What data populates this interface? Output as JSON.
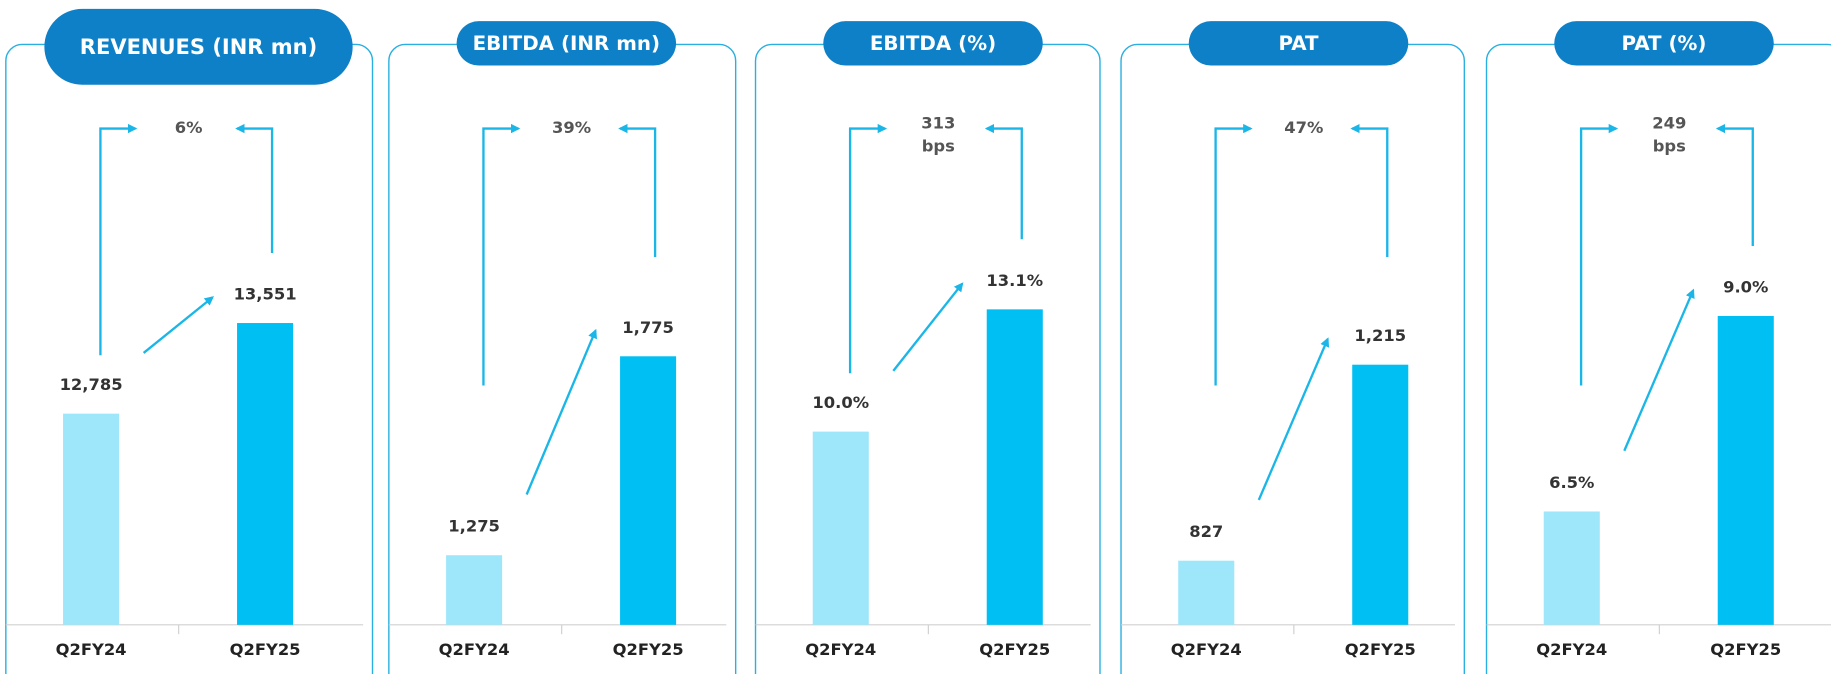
{
  "chart_data": [
    {
      "type": "bar",
      "title": "REVENUES (INR mn)",
      "categories": [
        "Q2FY24",
        "Q2FY25"
      ],
      "values": [
        12785,
        13551
      ],
      "value_labels": [
        "12,785",
        "13,551"
      ],
      "colors": [
        "#9ee7fa",
        "#00bff2"
      ],
      "ylim": [
        11000,
        14800
      ],
      "annotation": [
        "6%"
      ]
    },
    {
      "type": "bar",
      "title": "EBITDA (INR mn)",
      "categories": [
        "Q2FY24",
        "Q2FY25"
      ],
      "values": [
        1275,
        1775
      ],
      "value_labels": [
        "1,275",
        "1,775"
      ],
      "colors": [
        "#9ee7fa",
        "#00bff2"
      ],
      "ylim": [
        1100,
        2230
      ],
      "annotation": [
        "39%"
      ]
    },
    {
      "type": "bar",
      "title": "EBITDA (%)",
      "categories": [
        "Q2FY24",
        "Q2FY25"
      ],
      "values": [
        10.0,
        13.1
      ],
      "value_labels": [
        "10.0%",
        "13.1%"
      ],
      "colors": [
        "#9ee7fa",
        "#00bff2"
      ],
      "ylim": [
        5.1,
        16.5
      ],
      "annotation": [
        "313",
        "bps"
      ]
    },
    {
      "type": "bar",
      "title": "PAT",
      "categories": [
        "Q2FY24",
        "Q2FY25"
      ],
      "values": [
        827,
        1215
      ],
      "value_labels": [
        "827",
        "1,215"
      ],
      "colors": [
        "#9ee7fa",
        "#00bff2"
      ],
      "ylim": [
        700,
        1590
      ],
      "annotation": [
        "47%"
      ]
    },
    {
      "type": "bar",
      "title": "PAT (%)",
      "categories": [
        "Q2FY24",
        "Q2FY25"
      ],
      "values": [
        6.5,
        9.0
      ],
      "value_labels": [
        "6.5%",
        "9.0%"
      ],
      "colors": [
        "#9ee7fa",
        "#00bff2"
      ],
      "ylim": [
        5.05,
        10.8
      ],
      "annotation": [
        "249",
        "bps"
      ]
    }
  ]
}
